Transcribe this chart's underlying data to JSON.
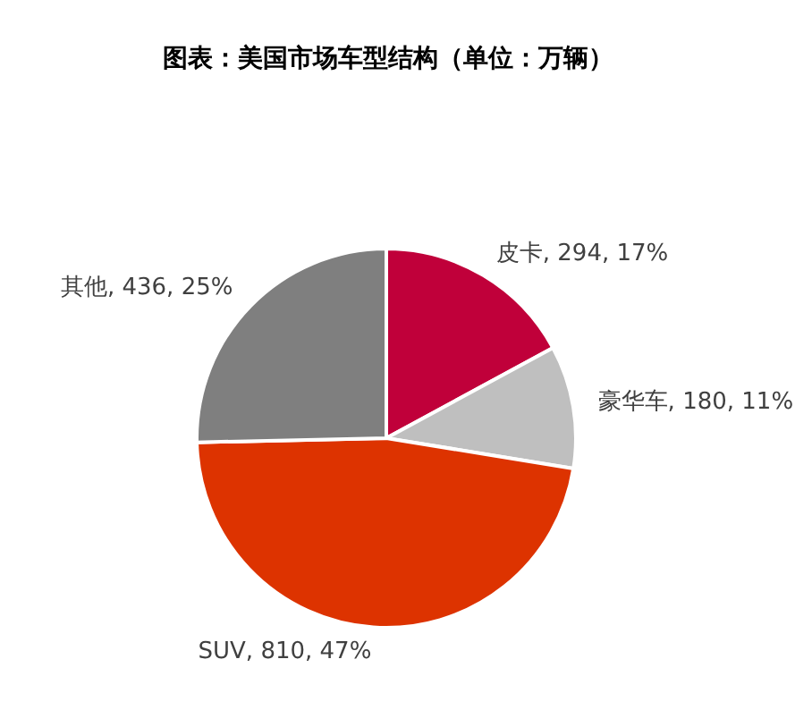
{
  "chart_data": {
    "type": "pie",
    "title": "图表：美国市场车型结构（单位：万辆）",
    "categories": [
      "皮卡",
      "豪华车",
      "SUV",
      "其他"
    ],
    "values": [
      294,
      180,
      810,
      436
    ],
    "value_labels": [
      "294, 17%",
      "180, 11%",
      "810, 47%",
      "436, 25%"
    ],
    "colors": [
      "#c0003a",
      "#bfbfbf",
      "#dd3300",
      "#7f7f7f"
    ],
    "legend": false
  }
}
